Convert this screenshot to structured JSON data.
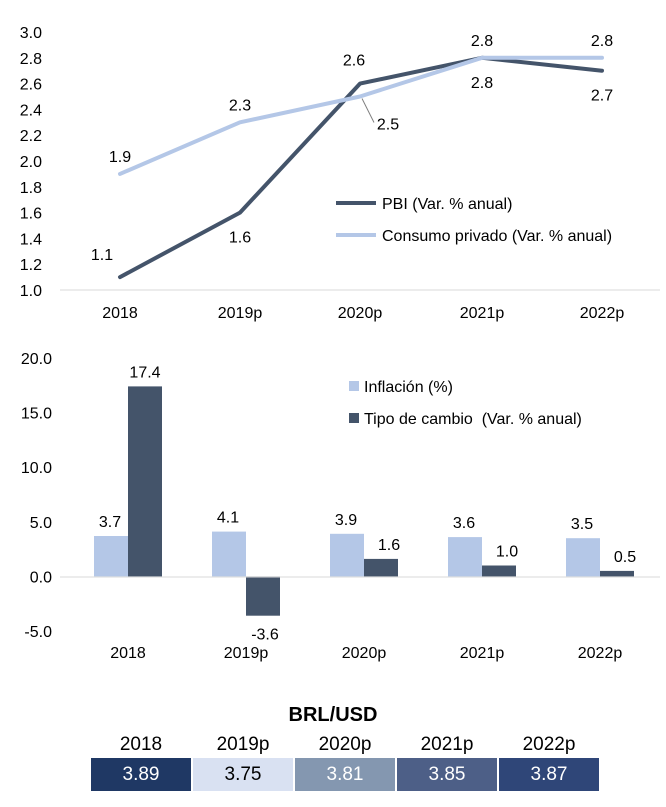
{
  "chart_data": [
    {
      "type": "line",
      "categories": [
        "2018",
        "2019p",
        "2020p",
        "2021p",
        "2022p"
      ],
      "ylim": [
        1.0,
        3.0
      ],
      "yticks": [
        "1.0",
        "1.2",
        "1.4",
        "1.6",
        "1.8",
        "2.0",
        "2.2",
        "2.4",
        "2.6",
        "2.8",
        "3.0"
      ],
      "grid": false,
      "legend_position": "bottom-right",
      "series": [
        {
          "name": "PBI (Var. % anual)",
          "values": [
            1.1,
            1.6,
            2.6,
            2.8,
            2.7
          ],
          "labels": [
            "1.1",
            "1.6",
            "2.6",
            "2.8",
            "2.7"
          ],
          "color": "#44546a"
        },
        {
          "name": "Consumo privado (Var. % anual)",
          "values": [
            1.9,
            2.3,
            2.5,
            2.8,
            2.8
          ],
          "labels": [
            "1.9",
            "2.3",
            "2.5",
            "2.8",
            "2.8"
          ],
          "color": "#b4c7e7"
        }
      ]
    },
    {
      "type": "bar",
      "categories": [
        "2018",
        "2019p",
        "2020p",
        "2021p",
        "2022p"
      ],
      "ylim": [
        -5.0,
        20.0
      ],
      "yticks": [
        "-5.0",
        "0.0",
        "5.0",
        "10.0",
        "15.0",
        "20.0"
      ],
      "grid": false,
      "legend_position": "top-right",
      "series": [
        {
          "name": "Inflación (%)",
          "values": [
            3.7,
            4.1,
            3.9,
            3.6,
            3.5
          ],
          "labels": [
            "3.7",
            "4.1",
            "3.9",
            "3.6",
            "3.5"
          ],
          "color": "#b4c7e7"
        },
        {
          "name": "Tipo de cambio  (Var. % anual)",
          "values": [
            17.4,
            -3.6,
            1.6,
            1.0,
            0.5
          ],
          "labels": [
            "17.4",
            "-3.6",
            "1.6",
            "1.0",
            "0.5"
          ],
          "color": "#44546a"
        }
      ]
    },
    {
      "type": "table",
      "title": "BRL/USD",
      "columns": [
        "2018",
        "2019p",
        "2020p",
        "2021p",
        "2022p"
      ],
      "values": [
        "3.89",
        "3.75",
        "3.81",
        "3.85",
        "3.87"
      ],
      "cell_colors": [
        "#1f3864",
        "#d9e1f2",
        "#8497b0",
        "#4d5f87",
        "#2f4678"
      ],
      "text_colors": [
        "#ffffff",
        "#000000",
        "#ffffff",
        "#ffffff",
        "#ffffff"
      ]
    }
  ]
}
